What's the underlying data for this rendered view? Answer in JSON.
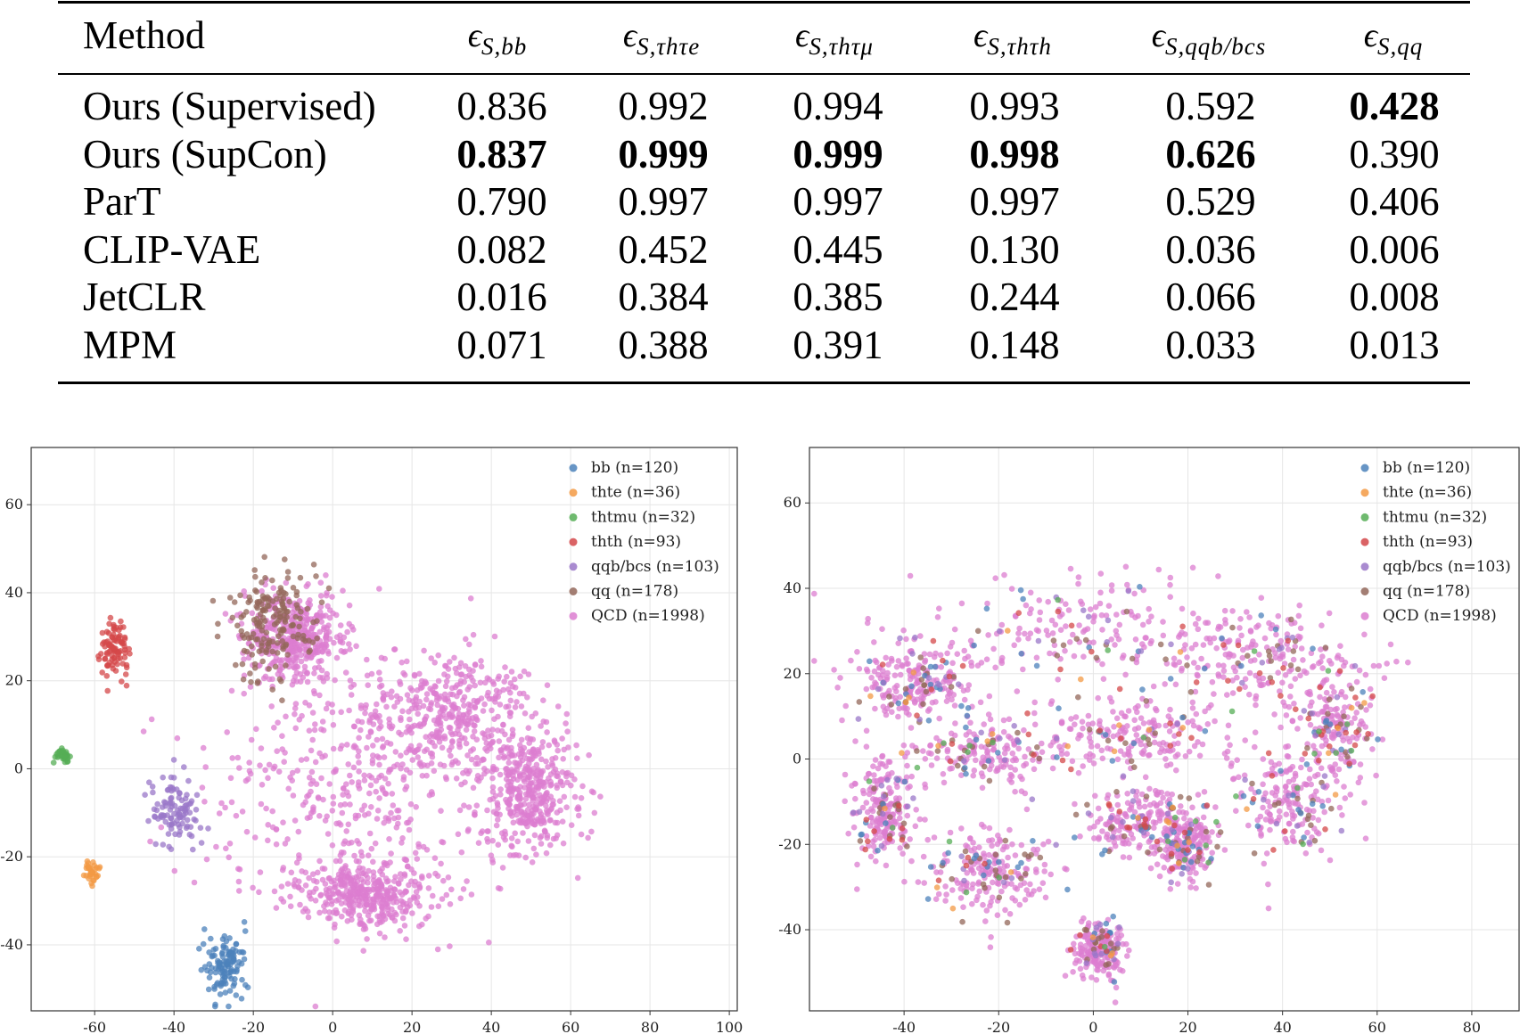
{
  "table": {
    "headers": {
      "method": "Method",
      "columns": [
        {
          "symbol": "ϵ",
          "sub": "S,bb"
        },
        {
          "symbol": "ϵ",
          "sub": "S,τhτe"
        },
        {
          "symbol": "ϵ",
          "sub": "S,τhτμ"
        },
        {
          "symbol": "ϵ",
          "sub": "S,τhτh"
        },
        {
          "symbol": "ϵ",
          "sub": "S,qqb/bcs"
        },
        {
          "symbol": "ϵ",
          "sub": "S,qq"
        }
      ]
    },
    "rows": [
      {
        "method": "Ours (Supervised)",
        "values": [
          "0.836",
          "0.992",
          "0.994",
          "0.993",
          "0.592",
          "0.428"
        ],
        "bold": [
          false,
          false,
          false,
          false,
          false,
          true
        ]
      },
      {
        "method": "Ours (SupCon)",
        "values": [
          "0.837",
          "0.999",
          "0.999",
          "0.998",
          "0.626",
          "0.390"
        ],
        "bold": [
          true,
          true,
          true,
          true,
          true,
          false
        ]
      },
      {
        "method": "ParT",
        "values": [
          "0.790",
          "0.997",
          "0.997",
          "0.997",
          "0.529",
          "0.406"
        ],
        "bold": [
          false,
          false,
          false,
          false,
          false,
          false
        ]
      },
      {
        "method": "CLIP-VAE",
        "values": [
          "0.082",
          "0.452",
          "0.445",
          "0.130",
          "0.036",
          "0.006"
        ],
        "bold": [
          false,
          false,
          false,
          false,
          false,
          false
        ]
      },
      {
        "method": "JetCLR",
        "values": [
          "0.016",
          "0.384",
          "0.385",
          "0.244",
          "0.066",
          "0.008"
        ],
        "bold": [
          false,
          false,
          false,
          false,
          false,
          false
        ]
      },
      {
        "method": "MPM",
        "values": [
          "0.071",
          "0.388",
          "0.391",
          "0.148",
          "0.033",
          "0.013"
        ],
        "bold": [
          false,
          false,
          false,
          false,
          false,
          false
        ]
      }
    ]
  },
  "chart_data": [
    {
      "type": "scatter",
      "title": "",
      "xlabel": "",
      "ylabel": "",
      "xlim": [
        -76,
        102
      ],
      "ylim": [
        -55,
        73
      ],
      "xticks": [
        "-60",
        "-40",
        "-20",
        "0",
        "20",
        "40",
        "60",
        "80",
        "100"
      ],
      "yticks": [
        "-40",
        "-20",
        "0",
        "20",
        "40",
        "60"
      ],
      "grid": true,
      "legend_position": "top-right",
      "point_alpha": 0.75,
      "series": [
        {
          "name": "bb (n=120)",
          "color": "#4c82bb",
          "count": 120,
          "clusters": [
            {
              "cx": -27,
              "cy": -45,
              "sx": 2.6,
              "sy": 3.6
            }
          ]
        },
        {
          "name": "thte (n=36)",
          "color": "#f39a44",
          "count": 36,
          "clusters": [
            {
              "cx": -61,
              "cy": -23.5,
              "sx": 1.0,
              "sy": 1.2
            }
          ]
        },
        {
          "name": "thtmu (n=32)",
          "color": "#56ae56",
          "count": 32,
          "clusters": [
            {
              "cx": -68,
              "cy": 3,
              "sx": 0.9,
              "sy": 0.9
            }
          ]
        },
        {
          "name": "thth (n=93)",
          "color": "#d4484a",
          "count": 93,
          "clusters": [
            {
              "cx": -55,
              "cy": 27,
              "sx": 1.7,
              "sy": 3.5
            }
          ]
        },
        {
          "name": "qqb/bcs (n=103)",
          "color": "#9a77c8",
          "count": 103,
          "clusters": [
            {
              "cx": -40,
              "cy": -10,
              "sx": 3.5,
              "sy": 4.2
            }
          ]
        },
        {
          "name": "qq (n=178)",
          "color": "#93675a",
          "count": 178,
          "clusters": [
            {
              "cx": -15,
              "cy": 33,
              "sx": 5.5,
              "sy": 6.5
            }
          ]
        },
        {
          "name": "QCD (n=1998)",
          "color": "#dc7ed0",
          "count": 1998,
          "clusters": [
            {
              "cx": 2,
              "cy": -2,
              "sx": 18,
              "sy": 13
            },
            {
              "cx": 50,
              "cy": -5,
              "sx": 6,
              "sy": 7
            },
            {
              "cx": 8,
              "cy": -28,
              "sx": 9,
              "sy": 4
            },
            {
              "cx": -10,
              "cy": 30,
              "sx": 6,
              "sy": 5
            },
            {
              "cx": 30,
              "cy": 12,
              "sx": 10,
              "sy": 7
            }
          ]
        }
      ]
    },
    {
      "type": "scatter",
      "title": "",
      "xlabel": "",
      "ylabel": "",
      "xlim": [
        -60,
        90
      ],
      "ylim": [
        -59,
        73
      ],
      "xticks": [
        "-40",
        "-20",
        "0",
        "20",
        "40",
        "60",
        "80"
      ],
      "yticks": [
        "-40",
        "-20",
        "0",
        "20",
        "40",
        "60"
      ],
      "grid": true,
      "legend_position": "top-right",
      "point_alpha": 0.75,
      "series": [
        {
          "name": "bb (n=120)",
          "color": "#4c82bb",
          "count": 120,
          "mixed": true
        },
        {
          "name": "thte (n=36)",
          "color": "#f39a44",
          "count": 36,
          "mixed": true
        },
        {
          "name": "thtmu (n=32)",
          "color": "#56ae56",
          "count": 32,
          "mixed": true
        },
        {
          "name": "thth (n=93)",
          "color": "#d4484a",
          "count": 93,
          "mixed": true
        },
        {
          "name": "qqb/bcs (n=103)",
          "color": "#9a77c8",
          "count": 103,
          "mixed": true
        },
        {
          "name": "qq (n=178)",
          "color": "#93675a",
          "count": 178,
          "mixed": true
        },
        {
          "name": "QCD (n=1998)",
          "color": "#dc7ed0",
          "count": 1998,
          "mixed": true
        }
      ],
      "shared_clusters": [
        {
          "cx": -3,
          "cy": 31,
          "sx": 18,
          "sy": 6
        },
        {
          "cx": 35,
          "cy": 24,
          "sx": 10,
          "sy": 5
        },
        {
          "cx": -38,
          "cy": 18,
          "sx": 6,
          "sy": 5
        },
        {
          "cx": -22,
          "cy": 2,
          "sx": 8,
          "sy": 4
        },
        {
          "cx": 10,
          "cy": 5,
          "sx": 10,
          "sy": 5
        },
        {
          "cx": 52,
          "cy": 8,
          "sx": 4,
          "sy": 6
        },
        {
          "cx": 42,
          "cy": -10,
          "sx": 6,
          "sy": 7
        },
        {
          "cx": -44,
          "cy": -12,
          "sx": 3,
          "sy": 6
        },
        {
          "cx": -22,
          "cy": -27,
          "sx": 7,
          "sy": 5
        },
        {
          "cx": 10,
          "cy": -15,
          "sx": 6,
          "sy": 4
        },
        {
          "cx": 20,
          "cy": -20,
          "sx": 3,
          "sy": 4
        },
        {
          "cx": 1,
          "cy": -45,
          "sx": 2.5,
          "sy": 3.5
        }
      ]
    }
  ]
}
